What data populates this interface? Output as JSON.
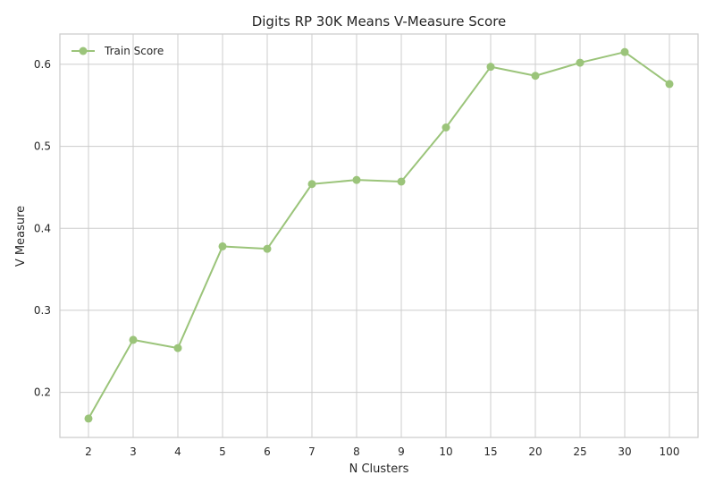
{
  "chart_data": {
    "type": "line",
    "title": "Digits RP 30K Means V-Measure Score",
    "xlabel": "N Clusters",
    "ylabel": "V Measure",
    "categories": [
      "2",
      "3",
      "4",
      "5",
      "6",
      "7",
      "8",
      "9",
      "10",
      "15",
      "20",
      "25",
      "30",
      "100"
    ],
    "series": [
      {
        "name": "Train Score",
        "color": "#9bc47a",
        "values": [
          0.168,
          0.264,
          0.254,
          0.378,
          0.375,
          0.454,
          0.459,
          0.457,
          0.523,
          0.597,
          0.586,
          0.602,
          0.615,
          0.576
        ]
      }
    ],
    "ylim": [
      0.145,
      0.637
    ],
    "yticks": [
      0.2,
      0.3,
      0.4,
      0.5,
      0.6
    ],
    "grid": true,
    "legend": "top-left"
  }
}
